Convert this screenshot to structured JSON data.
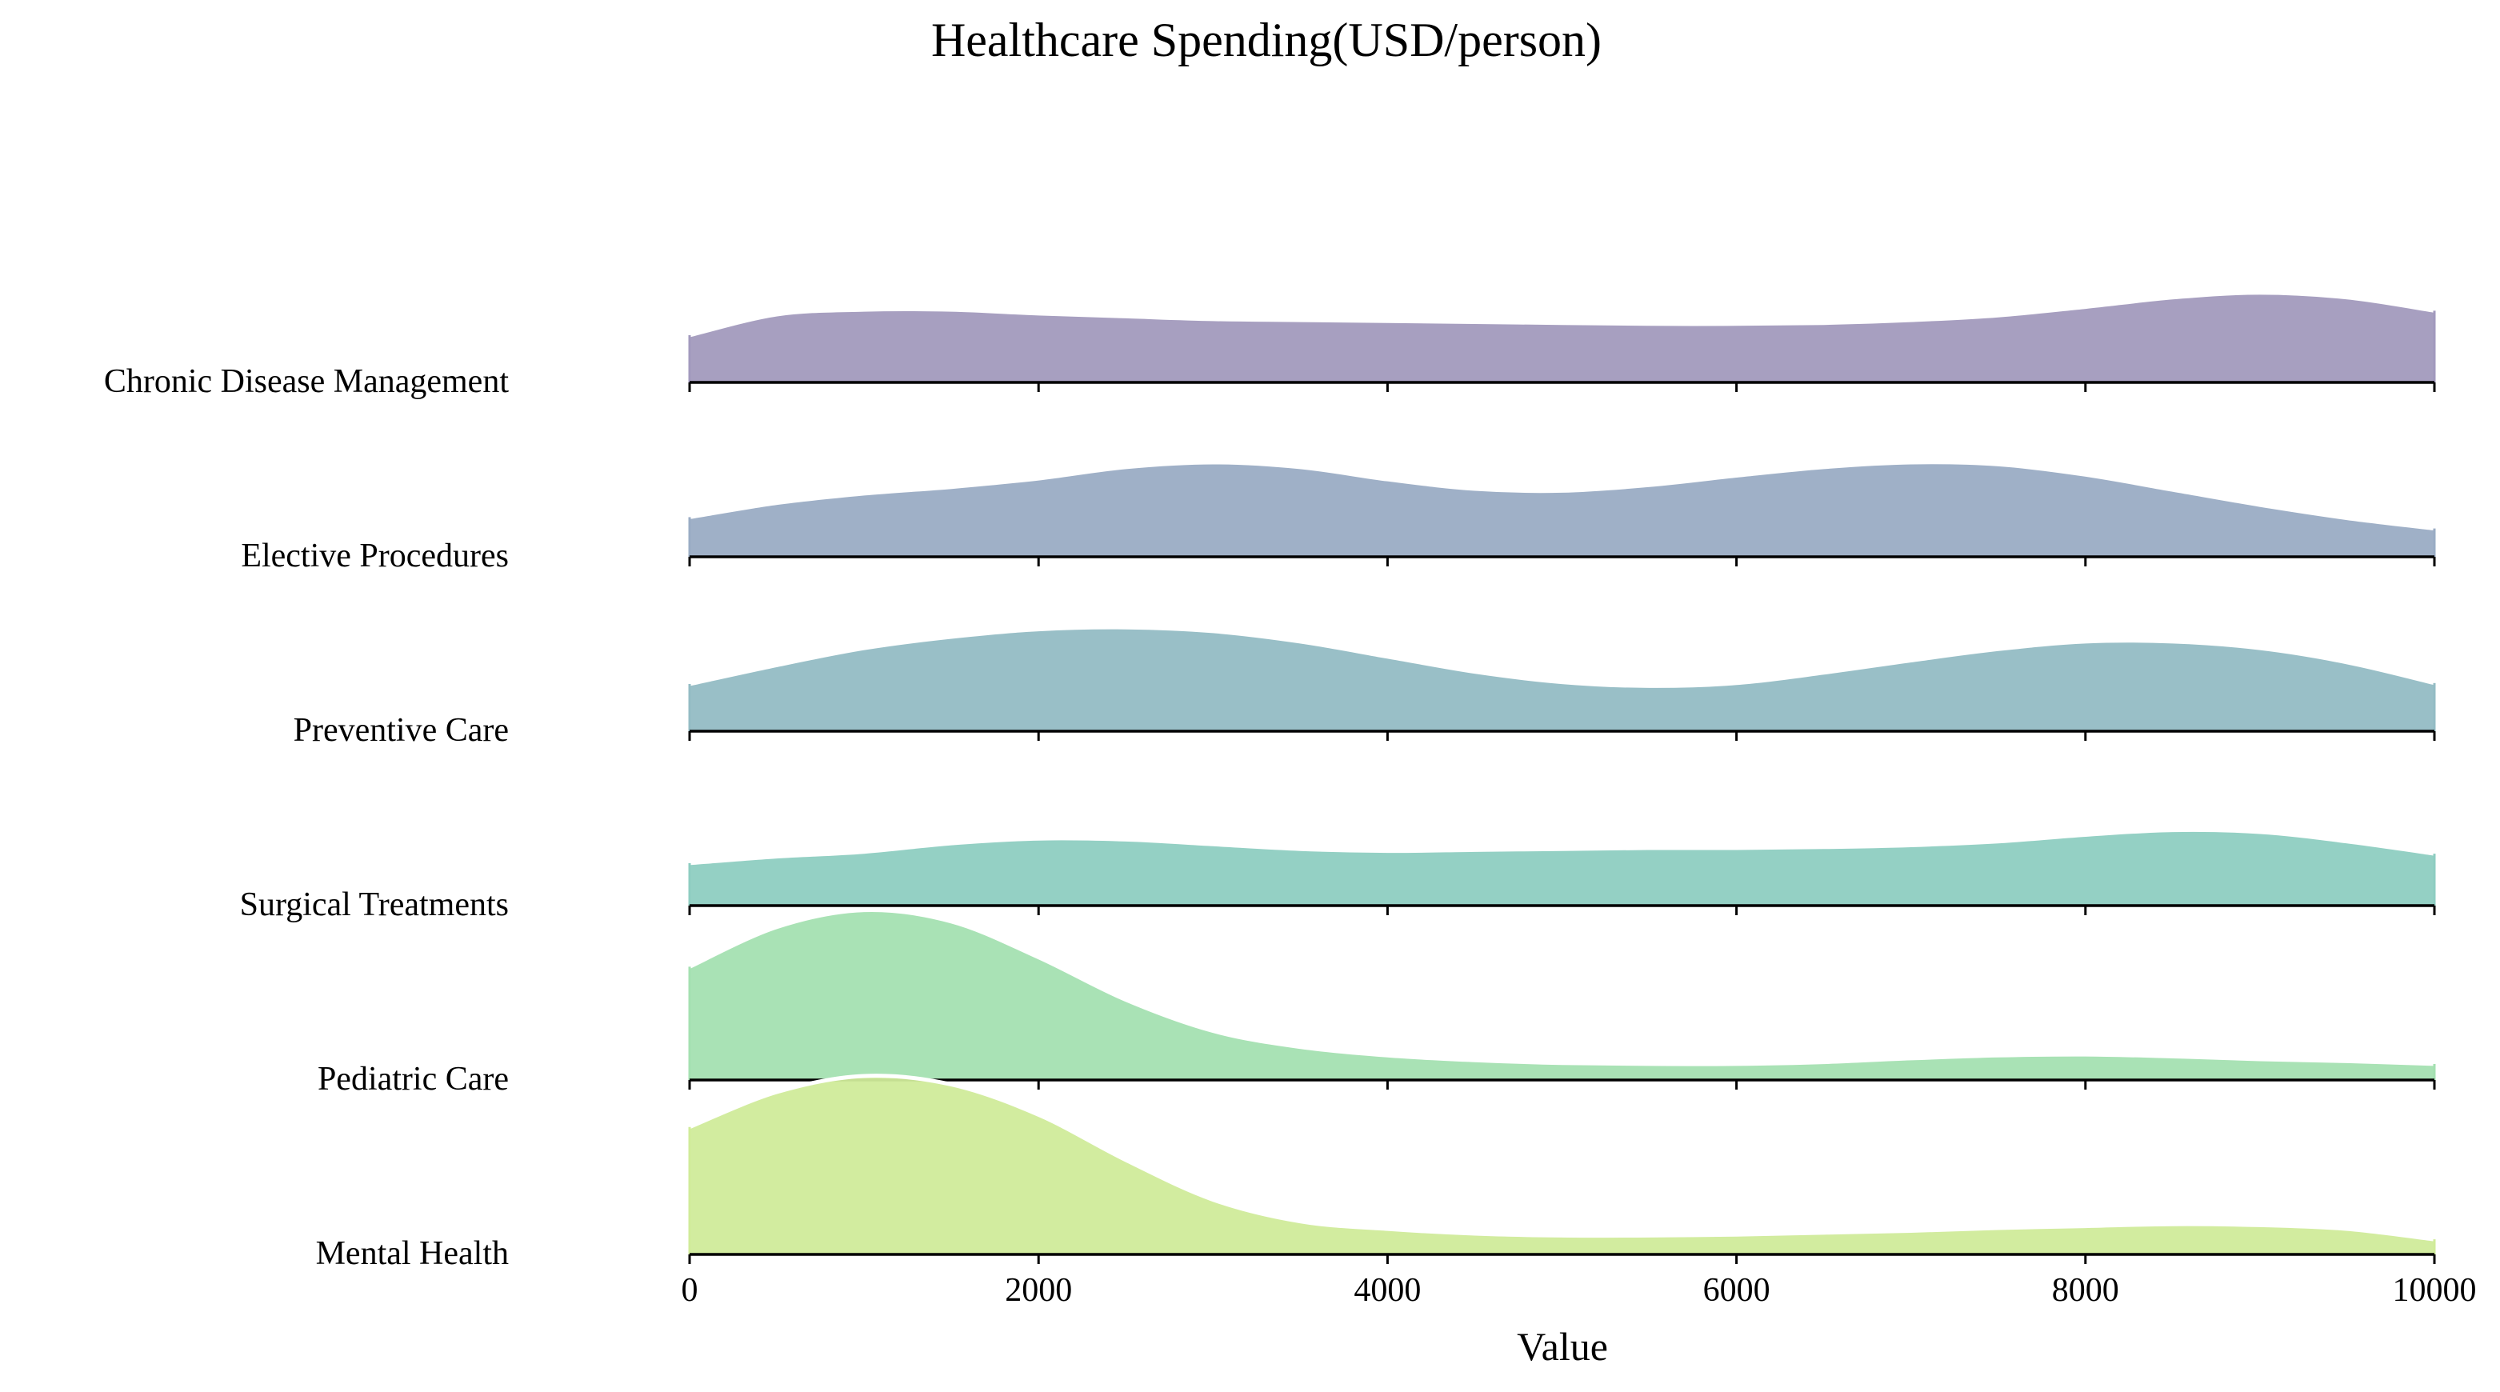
{
  "chart_data": {
    "type": "ridgeline",
    "title": "Healthcare Spending(USD/person)",
    "xlabel": "Value",
    "ylabel": "",
    "xlim": [
      0,
      10000
    ],
    "x_ticks": [
      0,
      2000,
      4000,
      6000,
      8000,
      10000
    ],
    "x_tick_labels": [
      "0",
      "2000",
      "4000",
      "6000",
      "8000",
      "10000"
    ],
    "grid": false,
    "legend": "none",
    "x": [
      0,
      500,
      1000,
      1500,
      2000,
      2500,
      3000,
      3500,
      4000,
      4500,
      5000,
      5500,
      6000,
      6500,
      7000,
      7500,
      8000,
      8500,
      9000,
      9500,
      10000
    ],
    "series": [
      {
        "name": "Chronic Disease Management",
        "color": "#a29abd",
        "density": [
          0.5,
          0.72,
          0.77,
          0.77,
          0.73,
          0.7,
          0.67,
          0.66,
          0.65,
          0.64,
          0.63,
          0.62,
          0.62,
          0.63,
          0.66,
          0.71,
          0.8,
          0.9,
          0.95,
          0.9,
          0.76
        ]
      },
      {
        "name": "Elective Procedures",
        "color": "#9aacc4",
        "density": [
          0.42,
          0.57,
          0.67,
          0.74,
          0.83,
          0.95,
          1.0,
          0.95,
          0.82,
          0.72,
          0.7,
          0.76,
          0.86,
          0.95,
          1.0,
          0.98,
          0.87,
          0.71,
          0.55,
          0.41,
          0.3
        ]
      },
      {
        "name": "Preventive Care",
        "color": "#94bcc4",
        "density": [
          0.5,
          0.7,
          0.88,
          1.0,
          1.08,
          1.1,
          1.06,
          0.95,
          0.79,
          0.63,
          0.52,
          0.48,
          0.51,
          0.62,
          0.75,
          0.87,
          0.95,
          0.95,
          0.88,
          0.73,
          0.51
        ]
      },
      {
        "name": "Surgical Treatments",
        "color": "#8ecdc1",
        "density": [
          0.45,
          0.52,
          0.57,
          0.66,
          0.71,
          0.7,
          0.65,
          0.6,
          0.58,
          0.59,
          0.6,
          0.61,
          0.61,
          0.62,
          0.64,
          0.68,
          0.75,
          0.8,
          0.78,
          0.68,
          0.55
        ]
      },
      {
        "name": "Pediatric Care",
        "color": "#a4e0b1",
        "density": [
          1.2,
          1.62,
          1.8,
          1.68,
          1.3,
          0.85,
          0.52,
          0.35,
          0.26,
          0.21,
          0.18,
          0.17,
          0.17,
          0.19,
          0.23,
          0.26,
          0.27,
          0.25,
          0.22,
          0.2,
          0.17
        ]
      },
      {
        "name": "Mental Health",
        "color": "#d0eb9a",
        "density": [
          1.35,
          1.72,
          1.89,
          1.8,
          1.48,
          1.0,
          0.58,
          0.35,
          0.27,
          0.22,
          0.2,
          0.2,
          0.21,
          0.23,
          0.25,
          0.28,
          0.3,
          0.32,
          0.31,
          0.27,
          0.16
        ]
      }
    ]
  }
}
